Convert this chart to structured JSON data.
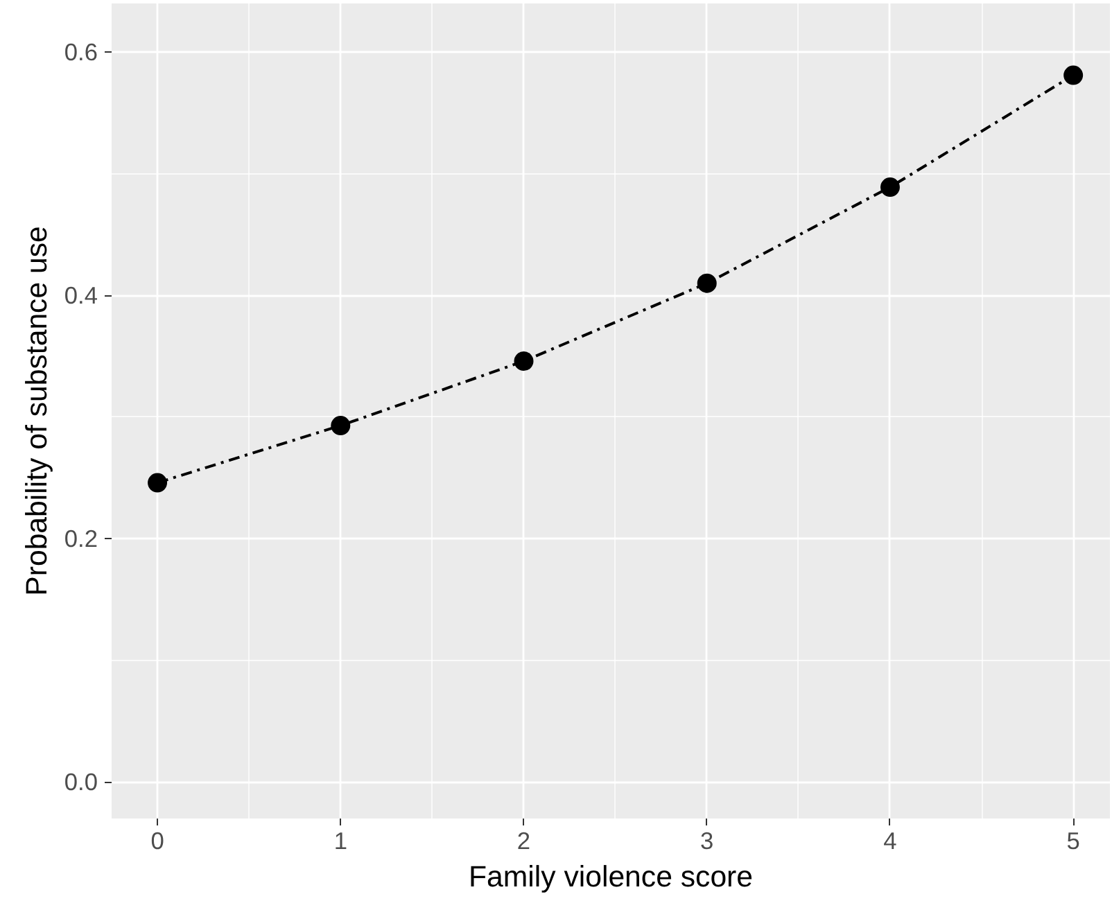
{
  "chart_data": {
    "type": "line",
    "xlabel": "Family violence score",
    "ylabel": "Probability of substance use",
    "x": [
      0,
      1,
      2,
      3,
      4,
      5
    ],
    "series": [
      {
        "color": "#000000",
        "values": [
          0.246,
          0.293,
          0.346,
          0.41,
          0.489,
          0.581
        ]
      }
    ],
    "xlim": [
      -0.25,
      5.2
    ],
    "ylim": [
      -0.03,
      0.64
    ],
    "xticks": [
      0,
      1,
      2,
      3,
      4,
      5
    ],
    "yticks": [
      {
        "value": 0,
        "label": "0.0"
      },
      {
        "value": 0.2,
        "label": "0.2"
      },
      {
        "value": 0.4,
        "label": "0.4"
      },
      {
        "value": 0.6,
        "label": "0.6"
      }
    ],
    "grid": true,
    "marker": "circle",
    "line_style": "dashdot"
  }
}
